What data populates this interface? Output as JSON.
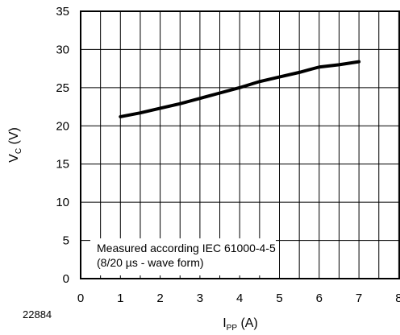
{
  "figure_id": "22884",
  "chart_data": {
    "type": "line",
    "xlabel": "I",
    "xlabel_sub": "PP",
    "xlabel_unit": " (A)",
    "ylabel": "V",
    "ylabel_sub": "C",
    "ylabel_unit": " (V)",
    "xlim": [
      0,
      8
    ],
    "ylim": [
      0,
      35
    ],
    "x_ticks": [
      0,
      1,
      2,
      3,
      4,
      5,
      6,
      7,
      8
    ],
    "y_ticks": [
      0,
      5,
      10,
      15,
      20,
      25,
      30,
      35
    ],
    "x_minor_step": 0.5,
    "grid": true,
    "series": [
      {
        "x": [
          1,
          1.5,
          2,
          2.5,
          3,
          3.5,
          4,
          4.5,
          5,
          5.5,
          6,
          6.5,
          7
        ],
        "y": [
          21.2,
          21.7,
          22.3,
          22.9,
          23.6,
          24.3,
          25.0,
          25.8,
          26.4,
          27.0,
          27.7,
          28.0,
          28.4
        ],
        "color": "#000000"
      }
    ],
    "annotations": [
      "Measured according IEC 61000-4-5",
      "(8/20 µs - wave form)"
    ]
  }
}
